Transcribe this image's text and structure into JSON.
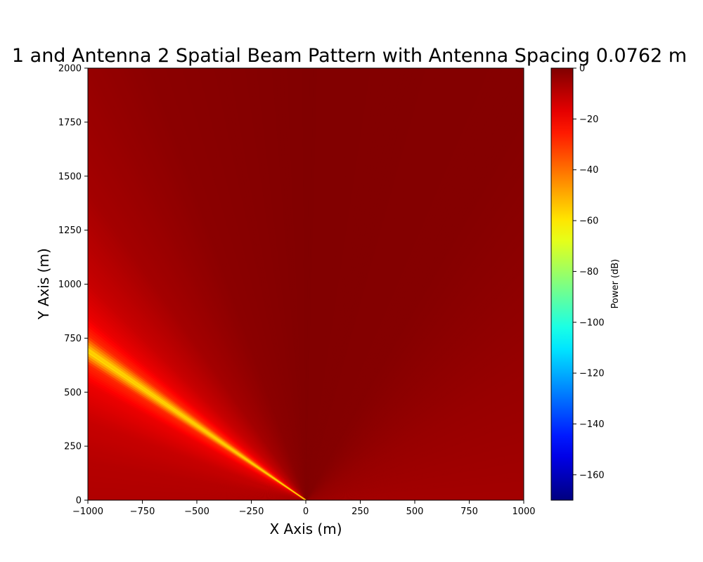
{
  "chart_data": {
    "type": "heatmap",
    "title": "1 and Antenna 2 Spatial Beam Pattern with Antenna Spacing 0.0762 m",
    "xlabel": "X Axis (m)",
    "ylabel": "Y Axis (m)",
    "xlim": [
      -1000,
      1000
    ],
    "ylim": [
      0,
      2000
    ],
    "x_ticks": [
      -1000,
      -750,
      -500,
      -250,
      0,
      250,
      500,
      750,
      1000
    ],
    "x_tick_labels": [
      "−1000",
      "−750",
      "−500",
      "−250",
      "0",
      "250",
      "500",
      "750",
      "1000"
    ],
    "y_ticks": [
      0,
      250,
      500,
      750,
      1000,
      1250,
      1500,
      1750,
      2000
    ],
    "y_tick_labels": [
      "0",
      "250",
      "500",
      "750",
      "1000",
      "1250",
      "1500",
      "1750",
      "2000"
    ],
    "grid": false,
    "colormap": "jet",
    "colorbar": {
      "label": "Power (dB)",
      "range": [
        -170,
        0
      ],
      "ticks": [
        0,
        -20,
        -40,
        -60,
        -80,
        -100,
        -120,
        -140,
        -160
      ],
      "tick_labels": [
        "0",
        "−20",
        "−40",
        "−60",
        "−80",
        "−100",
        "−120",
        "−140",
        "−160"
      ]
    },
    "field": {
      "description_source": "values estimated by angle from origin",
      "null_line_angle_deg": 145.6,
      "angle_power_profile_deg_db": [
        [
          0,
          -6
        ],
        [
          30,
          -4
        ],
        [
          60,
          -1
        ],
        [
          90,
          -0.3
        ],
        [
          110,
          -2
        ],
        [
          125,
          -6
        ],
        [
          135,
          -12
        ],
        [
          140,
          -18
        ],
        [
          143,
          -28
        ],
        [
          145.6,
          -60
        ],
        [
          148,
          -28
        ],
        [
          152,
          -18
        ],
        [
          160,
          -12
        ],
        [
          170,
          -9
        ],
        [
          180,
          -8
        ]
      ]
    }
  }
}
